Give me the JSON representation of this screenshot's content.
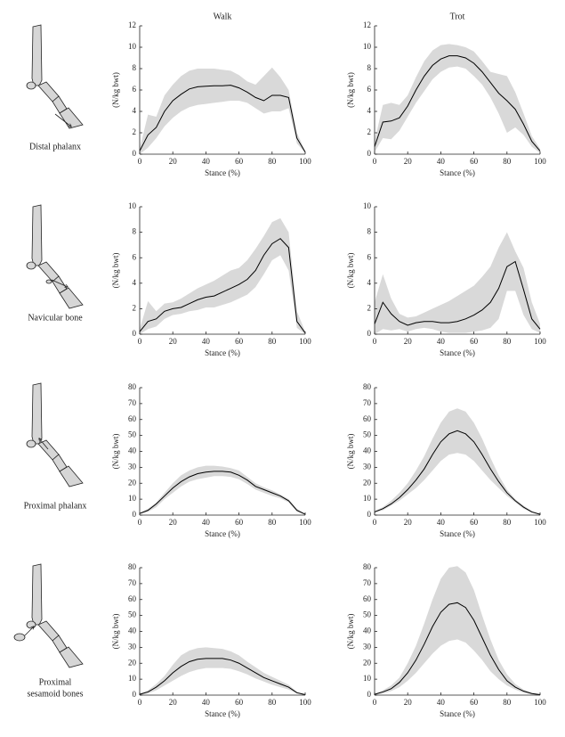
{
  "bones": [
    {
      "label": "Distal phalanx"
    },
    {
      "label": "Navicular bone"
    },
    {
      "label": "Proximal phalanx"
    },
    {
      "label": [
        "Proximal",
        "sesamoid bones"
      ]
    }
  ],
  "chart_data": [
    {
      "type": "line",
      "title": "Walk",
      "xlabel": "Stance (%)",
      "ylabel": "(N/kg bwt)",
      "x": [
        0,
        5,
        10,
        15,
        20,
        25,
        30,
        35,
        40,
        45,
        50,
        55,
        60,
        65,
        70,
        75,
        80,
        85,
        90,
        95,
        100
      ],
      "series": [
        {
          "color": "#000000",
          "values": [
            0.3,
            1.8,
            2.5,
            4.0,
            5.0,
            5.6,
            6.1,
            6.3,
            6.35,
            6.4,
            6.4,
            6.45,
            6.2,
            5.8,
            5.3,
            5.0,
            5.5,
            5.5,
            5.3,
            1.5,
            0.2
          ]
        }
      ],
      "band": {
        "color": "#d9d9d9",
        "upper": [
          0.5,
          3.7,
          3.5,
          5.5,
          6.5,
          7.3,
          7.8,
          8.0,
          8.0,
          8.0,
          7.9,
          7.8,
          7.4,
          6.8,
          6.5,
          7.3,
          8.1,
          7.2,
          6.0,
          2.0,
          0.3
        ],
        "lower": [
          0,
          0.6,
          1.5,
          2.6,
          3.4,
          4.0,
          4.4,
          4.6,
          4.7,
          4.8,
          4.9,
          5.0,
          5.0,
          4.8,
          4.3,
          3.8,
          4.0,
          4.0,
          4.3,
          1.0,
          0.1
        ]
      },
      "xlim": [
        0,
        100
      ],
      "xticks": [
        0,
        20,
        40,
        60,
        80,
        100
      ],
      "ylim": [
        0,
        12
      ],
      "yticks": [
        0,
        2,
        4,
        6,
        8,
        10,
        12
      ]
    },
    {
      "type": "line",
      "title": "Trot",
      "xlabel": "Stance (%)",
      "ylabel": "(N/kg bwt)",
      "x": [
        0,
        5,
        10,
        15,
        20,
        25,
        30,
        35,
        40,
        45,
        50,
        55,
        60,
        65,
        70,
        75,
        80,
        85,
        90,
        95,
        100
      ],
      "series": [
        {
          "color": "#000000",
          "values": [
            0.7,
            3.0,
            3.1,
            3.4,
            4.5,
            6.0,
            7.3,
            8.3,
            8.9,
            9.2,
            9.2,
            9.0,
            8.5,
            7.7,
            6.7,
            5.7,
            5.0,
            4.2,
            2.8,
            1.2,
            0.3
          ]
        }
      ],
      "band": {
        "color": "#d9d9d9",
        "upper": [
          1.2,
          4.6,
          4.8,
          4.6,
          5.5,
          7.2,
          8.7,
          9.7,
          10.2,
          10.3,
          10.2,
          10.0,
          9.6,
          8.7,
          7.7,
          7.5,
          7.3,
          5.8,
          3.8,
          1.7,
          0.5
        ],
        "lower": [
          0.2,
          1.5,
          1.4,
          2.2,
          3.5,
          4.8,
          5.9,
          7.0,
          7.7,
          8.1,
          8.2,
          8.0,
          7.3,
          6.5,
          5.3,
          3.8,
          2.0,
          2.5,
          1.8,
          0.7,
          0.1
        ]
      },
      "xlim": [
        0,
        100
      ],
      "xticks": [
        0,
        20,
        40,
        60,
        80,
        100
      ],
      "ylim": [
        0,
        12
      ],
      "yticks": [
        0,
        2,
        4,
        6,
        8,
        10,
        12
      ]
    },
    {
      "type": "line",
      "xlabel": "Stance (%)",
      "ylabel": "(N/kg bwt)",
      "x": [
        0,
        5,
        10,
        15,
        20,
        25,
        30,
        35,
        40,
        45,
        50,
        55,
        60,
        65,
        70,
        75,
        80,
        85,
        90,
        95,
        100
      ],
      "series": [
        {
          "color": "#000000",
          "values": [
            0.2,
            1.0,
            1.2,
            1.8,
            2.0,
            2.1,
            2.4,
            2.7,
            2.9,
            3.0,
            3.3,
            3.6,
            3.9,
            4.3,
            5.0,
            6.2,
            7.1,
            7.5,
            6.8,
            1.0,
            0.1
          ]
        }
      ],
      "band": {
        "color": "#d9d9d9",
        "upper": [
          0.4,
          2.6,
          1.8,
          2.4,
          2.5,
          2.8,
          3.2,
          3.6,
          3.9,
          4.2,
          4.6,
          5.0,
          5.2,
          5.8,
          6.7,
          7.7,
          8.8,
          9.1,
          8.0,
          1.8,
          0.2
        ],
        "lower": [
          0,
          0.4,
          0.6,
          1.2,
          1.5,
          1.6,
          1.8,
          1.9,
          2.1,
          2.1,
          2.3,
          2.5,
          2.8,
          3.1,
          3.7,
          4.7,
          5.8,
          6.2,
          5.0,
          0.5,
          0
        ]
      },
      "xlim": [
        0,
        100
      ],
      "xticks": [
        0,
        20,
        40,
        60,
        80,
        100
      ],
      "ylim": [
        0,
        10
      ],
      "yticks": [
        0,
        2,
        4,
        6,
        8,
        10
      ]
    },
    {
      "type": "line",
      "xlabel": "Stance (%)",
      "ylabel": "(N/kg bwt)",
      "x": [
        0,
        5,
        10,
        15,
        20,
        25,
        30,
        35,
        40,
        45,
        50,
        55,
        60,
        65,
        70,
        75,
        80,
        85,
        90,
        95,
        100
      ],
      "series": [
        {
          "color": "#000000",
          "values": [
            0.8,
            2.5,
            1.6,
            1.0,
            0.7,
            0.9,
            1.0,
            1.0,
            0.9,
            0.9,
            1.0,
            1.2,
            1.5,
            1.9,
            2.5,
            3.6,
            5.3,
            5.7,
            3.5,
            1.2,
            0.4
          ]
        }
      ],
      "band": {
        "color": "#d9d9d9",
        "upper": [
          2.5,
          4.7,
          2.8,
          1.6,
          1.3,
          1.4,
          1.7,
          2.0,
          2.3,
          2.6,
          3.0,
          3.4,
          3.8,
          4.5,
          5.3,
          6.8,
          8.0,
          6.5,
          5.2,
          2.5,
          0.8
        ],
        "lower": [
          0,
          0.4,
          0.3,
          0.4,
          0.2,
          0.4,
          0.5,
          0.4,
          0.2,
          0.1,
          0.1,
          0.1,
          0.2,
          0.3,
          0.5,
          1.2,
          3.4,
          3.4,
          1.5,
          0.4,
          0.1
        ]
      },
      "xlim": [
        0,
        100
      ],
      "xticks": [
        0,
        20,
        40,
        60,
        80,
        100
      ],
      "ylim": [
        0,
        10
      ],
      "yticks": [
        0,
        2,
        4,
        6,
        8,
        10
      ]
    },
    {
      "type": "line",
      "xlabel": "Stance (%)",
      "ylabel": "(N/kg bwt)",
      "x": [
        0,
        5,
        10,
        15,
        20,
        25,
        30,
        35,
        40,
        45,
        50,
        55,
        60,
        65,
        70,
        75,
        80,
        85,
        90,
        95,
        100
      ],
      "series": [
        {
          "color": "#000000",
          "values": [
            1,
            3,
            7,
            12,
            17,
            21,
            24,
            26,
            27,
            27.5,
            27.5,
            27,
            25,
            22,
            18,
            16,
            14,
            12,
            9,
            3,
            0.5
          ]
        }
      ],
      "band": {
        "color": "#d9d9d9",
        "upper": [
          1.5,
          4,
          8,
          14,
          20,
          25,
          28,
          30,
          31,
          31,
          30.5,
          29.5,
          28,
          24,
          20,
          17.5,
          15.5,
          13,
          10,
          4,
          0.7
        ],
        "lower": [
          0.5,
          2,
          5,
          10,
          14,
          18,
          21,
          22.5,
          23.5,
          24.5,
          24.5,
          24,
          22.5,
          19.5,
          16,
          14,
          12,
          10.5,
          8,
          2,
          0.3
        ]
      },
      "xlim": [
        0,
        100
      ],
      "xticks": [
        0,
        20,
        40,
        60,
        80,
        100
      ],
      "ylim": [
        0,
        80
      ],
      "yticks": [
        0,
        10,
        20,
        30,
        40,
        50,
        60,
        70,
        80
      ]
    },
    {
      "type": "line",
      "xlabel": "Stance (%)",
      "ylabel": "(N/kg bwt)",
      "x": [
        0,
        5,
        10,
        15,
        20,
        25,
        30,
        35,
        40,
        45,
        50,
        55,
        60,
        65,
        70,
        75,
        80,
        85,
        90,
        95,
        100
      ],
      "series": [
        {
          "color": "#000000",
          "values": [
            2,
            4,
            7,
            11,
            16,
            22,
            29,
            38,
            46,
            51,
            53,
            51,
            46,
            38,
            29,
            21,
            14,
            9,
            5,
            2,
            0.5
          ]
        }
      ],
      "band": {
        "color": "#d9d9d9",
        "upper": [
          2.5,
          5,
          9,
          14,
          20,
          28,
          37,
          48,
          58,
          65,
          67,
          65,
          58,
          48,
          36,
          25,
          16,
          10,
          6,
          2.5,
          0.7
        ],
        "lower": [
          1.5,
          3,
          6,
          9,
          13,
          17,
          22,
          28,
          34,
          38,
          39,
          38,
          34,
          28,
          22,
          17,
          12,
          8,
          4,
          1.5,
          0.3
        ]
      },
      "xlim": [
        0,
        100
      ],
      "xticks": [
        0,
        20,
        40,
        60,
        80,
        100
      ],
      "ylim": [
        0,
        80
      ],
      "yticks": [
        0,
        10,
        20,
        30,
        40,
        50,
        60,
        70,
        80
      ]
    },
    {
      "type": "line",
      "xlabel": "Stance (%)",
      "ylabel": "(N/kg bwt)",
      "x": [
        0,
        5,
        10,
        15,
        20,
        25,
        30,
        35,
        40,
        45,
        50,
        55,
        60,
        65,
        70,
        75,
        80,
        85,
        90,
        95,
        100
      ],
      "series": [
        {
          "color": "#000000",
          "values": [
            0.5,
            2,
            5,
            9,
            14,
            18,
            21,
            22.5,
            23,
            23,
            23,
            22,
            20,
            17,
            14,
            11,
            9,
            7,
            5,
            1.5,
            0.3
          ]
        }
      ],
      "band": {
        "color": "#d9d9d9",
        "upper": [
          1,
          3,
          7,
          12,
          19,
          25,
          28,
          29.5,
          30,
          29.5,
          29,
          27.5,
          25,
          21,
          17.5,
          14,
          11.5,
          9,
          6.5,
          2,
          0.5
        ],
        "lower": [
          0.2,
          1,
          3,
          6,
          9,
          12,
          14.5,
          16,
          17,
          17,
          17,
          16.5,
          15,
          13,
          10.5,
          8.5,
          6.5,
          5,
          3.5,
          1,
          0.1
        ]
      },
      "xlim": [
        0,
        100
      ],
      "xticks": [
        0,
        20,
        40,
        60,
        80,
        100
      ],
      "ylim": [
        0,
        80
      ],
      "yticks": [
        0,
        10,
        20,
        30,
        40,
        50,
        60,
        70,
        80
      ]
    },
    {
      "type": "line",
      "xlabel": "Stance (%)",
      "ylabel": "(N/kg bwt)",
      "x": [
        0,
        5,
        10,
        15,
        20,
        25,
        30,
        35,
        40,
        45,
        50,
        55,
        60,
        65,
        70,
        75,
        80,
        85,
        90,
        95,
        100
      ],
      "series": [
        {
          "color": "#000000",
          "values": [
            0.5,
            2,
            4,
            8,
            14,
            22,
            32,
            43,
            52,
            57,
            58,
            55,
            47,
            36,
            25,
            16,
            9,
            5,
            2.5,
            1,
            0.3
          ]
        }
      ],
      "band": {
        "color": "#d9d9d9",
        "upper": [
          0.8,
          3,
          6,
          11,
          20,
          31,
          45,
          60,
          73,
          80,
          81,
          77,
          66,
          50,
          35,
          22,
          13,
          7,
          3.5,
          1.5,
          0.5
        ],
        "lower": [
          0.2,
          1,
          2.5,
          5,
          9,
          14,
          20,
          26,
          31,
          34,
          35,
          33,
          28,
          22,
          15,
          10,
          6,
          3.5,
          1.5,
          0.5,
          0.1
        ]
      },
      "xlim": [
        0,
        100
      ],
      "xticks": [
        0,
        20,
        40,
        60,
        80,
        100
      ],
      "ylim": [
        0,
        80
      ],
      "yticks": [
        0,
        10,
        20,
        30,
        40,
        50,
        60,
        70,
        80
      ]
    }
  ]
}
